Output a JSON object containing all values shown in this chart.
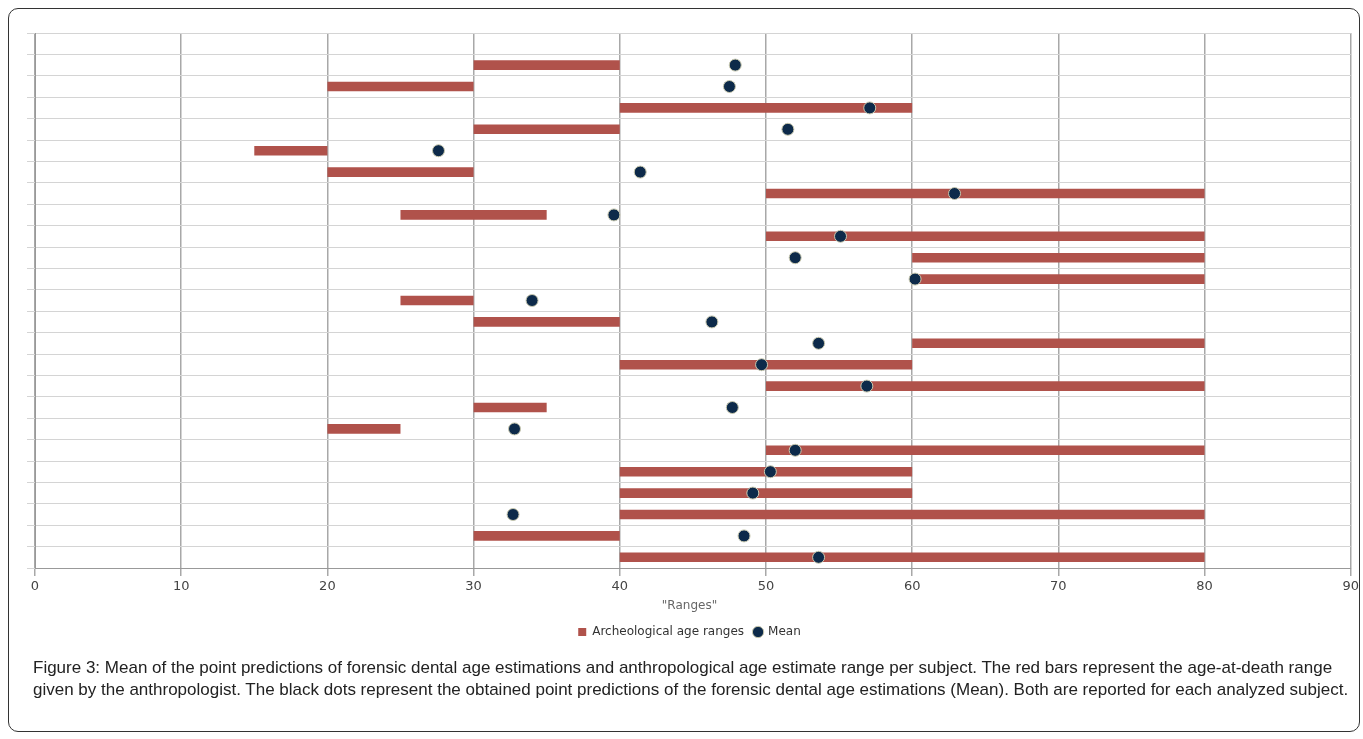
{
  "chart_data": {
    "type": "bar",
    "orientation": "horizontal",
    "categories": [
      null,
      null,
      null,
      null,
      null,
      null,
      null,
      null,
      null,
      null,
      null,
      null,
      null,
      null,
      null,
      null,
      null,
      null,
      null,
      null,
      null,
      null,
      null,
      null,
      null
    ],
    "series": [
      {
        "name": "Archeological age ranges",
        "color": "#b0524b",
        "base": [
          null,
          30,
          20,
          40,
          30,
          15,
          20,
          50,
          25,
          50,
          60,
          60,
          25,
          30,
          60,
          40,
          50,
          30,
          20,
          50,
          40,
          40,
          40,
          30,
          40
        ],
        "values": [
          null,
          10,
          10,
          20,
          10,
          5,
          10,
          30,
          10,
          30,
          20,
          20,
          5,
          10,
          20,
          20,
          30,
          5,
          5,
          30,
          20,
          20,
          40,
          10,
          40
        ]
      },
      {
        "name": "Mean",
        "type": "scatter",
        "color": "#0d2a4a",
        "values": [
          null,
          47.9,
          47.5,
          57.1,
          51.5,
          27.6,
          41.4,
          62.9,
          39.6,
          55.1,
          52.0,
          60.2,
          34.0,
          46.3,
          53.6,
          49.7,
          56.9,
          47.7,
          32.8,
          52.0,
          50.3,
          49.1,
          32.7,
          48.5,
          53.6
        ]
      }
    ],
    "xlim": [
      0,
      90
    ],
    "xticks": [
      0,
      10,
      20,
      30,
      40,
      50,
      60,
      70,
      80,
      90
    ],
    "grid": true,
    "legend": "bottom",
    "legend_title": "\"Ranges\"",
    "marker": "circle",
    "tick_labels": "x",
    "annotations": [
      "Figure 3: Mean of the point predictions of forensic dental age estimations and anthropological age estimate range per subject. The red bars represent the age-at-death range given by the anthropologist. The black dots represent the obtained point predictions of the forensic dental age estimations (Mean). Both are reported for each analyzed subject."
    ]
  }
}
